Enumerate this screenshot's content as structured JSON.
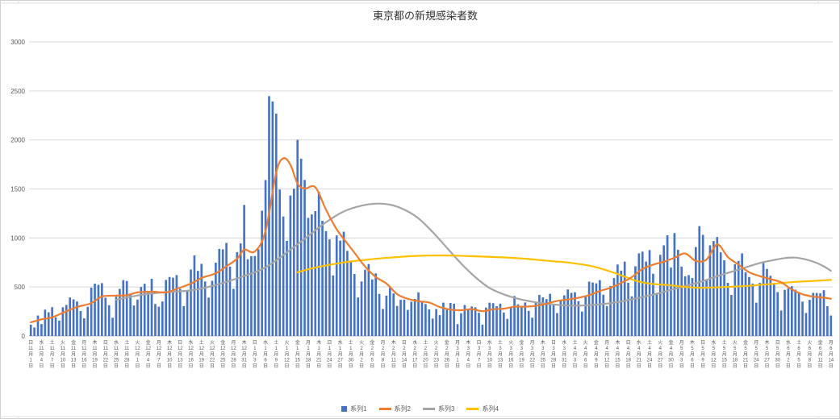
{
  "chart_data": {
    "type": "combo",
    "title": "東京都の新規感染者数",
    "ylim": [
      0,
      3000
    ],
    "yticks": [
      0,
      500,
      1000,
      1500,
      2000,
      2500,
      3000
    ],
    "x_total_days": 226,
    "x_tick_every_days": 3,
    "x_tick_labels": [
      [
        "日",
        11,
        1
      ],
      [
        "水",
        11,
        4
      ],
      [
        "土",
        11,
        7
      ],
      [
        "火",
        11,
        10
      ],
      [
        "金",
        11,
        13
      ],
      [
        "月",
        11,
        16
      ],
      [
        "木",
        11,
        19
      ],
      [
        "日",
        11,
        22
      ],
      [
        "水",
        11,
        25
      ],
      [
        "土",
        11,
        28
      ],
      [
        "火",
        12,
        1
      ],
      [
        "金",
        12,
        4
      ],
      [
        "月",
        12,
        7
      ],
      [
        "木",
        12,
        10
      ],
      [
        "日",
        12,
        13
      ],
      [
        "水",
        12,
        16
      ],
      [
        "土",
        12,
        19
      ],
      [
        "火",
        12,
        22
      ],
      [
        "金",
        12,
        25
      ],
      [
        "月",
        12,
        28
      ],
      [
        "木",
        12,
        31
      ],
      [
        "日",
        1,
        3
      ],
      [
        "水",
        1,
        6
      ],
      [
        "土",
        1,
        9
      ],
      [
        "火",
        1,
        12
      ],
      [
        "金",
        1,
        15
      ],
      [
        "月",
        1,
        18
      ],
      [
        "木",
        1,
        21
      ],
      [
        "日",
        1,
        24
      ],
      [
        "水",
        1,
        27
      ],
      [
        "土",
        1,
        30
      ],
      [
        "火",
        2,
        2
      ],
      [
        "金",
        2,
        5
      ],
      [
        "月",
        2,
        8
      ],
      [
        "木",
        2,
        11
      ],
      [
        "日",
        2,
        14
      ],
      [
        "水",
        2,
        17
      ],
      [
        "土",
        2,
        20
      ],
      [
        "火",
        2,
        23
      ],
      [
        "金",
        2,
        26
      ],
      [
        "月",
        3,
        1
      ],
      [
        "木",
        3,
        4
      ],
      [
        "日",
        3,
        7
      ],
      [
        "水",
        3,
        10
      ],
      [
        "土",
        3,
        13
      ],
      [
        "火",
        3,
        16
      ],
      [
        "金",
        3,
        19
      ],
      [
        "月",
        3,
        22
      ],
      [
        "木",
        3,
        25
      ],
      [
        "日",
        3,
        28
      ],
      [
        "水",
        3,
        31
      ],
      [
        "土",
        4,
        3
      ],
      [
        "火",
        4,
        6
      ],
      [
        "金",
        4,
        9
      ],
      [
        "月",
        4,
        12
      ],
      [
        "木",
        4,
        15
      ],
      [
        "日",
        4,
        18
      ],
      [
        "水",
        4,
        21
      ],
      [
        "土",
        4,
        24
      ],
      [
        "火",
        4,
        27
      ],
      [
        "金",
        4,
        30
      ],
      [
        "月",
        5,
        3
      ],
      [
        "木",
        5,
        6
      ],
      [
        "日",
        5,
        9
      ],
      [
        "水",
        5,
        12
      ],
      [
        "土",
        5,
        15
      ],
      [
        "火",
        5,
        18
      ],
      [
        "金",
        5,
        21
      ],
      [
        "月",
        5,
        24
      ],
      [
        "木",
        5,
        27
      ],
      [
        "日",
        5,
        30
      ],
      [
        "水",
        6,
        2
      ],
      [
        "土",
        6,
        5
      ],
      [
        "火",
        6,
        8
      ],
      [
        "金",
        6,
        11
      ],
      [
        "月",
        6,
        14
      ]
    ],
    "series1_bars": {
      "name": "系列1",
      "color": "#4472C4",
      "values": [
        116,
        87,
        209,
        122,
        269,
        242,
        294,
        189,
        157,
        293,
        317,
        393,
        374,
        352,
        255,
        180,
        298,
        493,
        534,
        522,
        539,
        391,
        314,
        186,
        401,
        481,
        570,
        561,
        418,
        311,
        372,
        500,
        533,
        449,
        584,
        327,
        299,
        352,
        572,
        602,
        595,
        621,
        480,
        305,
        460,
        678,
        822,
        664,
        736,
        556,
        392,
        563,
        748,
        888,
        884,
        949,
        708,
        481,
        856,
        944,
        1337,
        783,
        814,
        816,
        884,
        1278,
        1591,
        2447,
        2392,
        2268,
        1494,
        1219,
        970,
        1433,
        1502,
        2001,
        1809,
        1592,
        1204,
        1240,
        1274,
        1471,
        1175,
        1070,
        986,
        618,
        1026,
        973,
        1064,
        868,
        769,
        633,
        393,
        556,
        676,
        734,
        577,
        639,
        429,
        276,
        412,
        491,
        434,
        307,
        369,
        371,
        266,
        350,
        378,
        445,
        353,
        327,
        272,
        178,
        275,
        213,
        340,
        270,
        337,
        329,
        121,
        232,
        316,
        279,
        301,
        293,
        237,
        116,
        290,
        340,
        335,
        304,
        330,
        239,
        175,
        300,
        409,
        323,
        303,
        342,
        256,
        187,
        337,
        420,
        394,
        376,
        430,
        313,
        234,
        364,
        414,
        475,
        440,
        446,
        355,
        249,
        399,
        555,
        545,
        537,
        570,
        421,
        306,
        510,
        591,
        729,
        667,
        759,
        543,
        405,
        711,
        843,
        861,
        759,
        876,
        635,
        425,
        828,
        925,
        1027,
        698,
        1050,
        879,
        708,
        609,
        621,
        591,
        907,
        1121,
        1032,
        573,
        925,
        969,
        1010,
        854,
        772,
        542,
        419,
        732,
        766,
        843,
        649,
        602,
        535,
        340,
        542,
        743,
        684,
        614,
        539,
        448,
        260,
        471,
        487,
        508,
        472,
        436,
        351,
        235,
        369,
        440,
        439,
        435,
        467,
        304,
        209
      ]
    },
    "series2_line": {
      "name": "系列2",
      "color": "#ED7D31",
      "points": [
        [
          0,
          140
        ],
        [
          3,
          170
        ],
        [
          6,
          191
        ],
        [
          10,
          252
        ],
        [
          13,
          296
        ],
        [
          17,
          335
        ],
        [
          20,
          403
        ],
        [
          24,
          412
        ],
        [
          27,
          415
        ],
        [
          30,
          445
        ],
        [
          34,
          452
        ],
        [
          38,
          445
        ],
        [
          41,
          481
        ],
        [
          45,
          534
        ],
        [
          48,
          592
        ],
        [
          52,
          640
        ],
        [
          55,
          711
        ],
        [
          58,
          788
        ],
        [
          60,
          880
        ],
        [
          63,
          862
        ],
        [
          66,
          1072
        ],
        [
          69,
          1668
        ],
        [
          71,
          1813
        ],
        [
          73,
          1746
        ],
        [
          75,
          1555
        ],
        [
          77,
          1504
        ],
        [
          80,
          1517
        ],
        [
          83,
          1289
        ],
        [
          86,
          1089
        ],
        [
          89,
          944
        ],
        [
          91,
          850
        ],
        [
          94,
          708
        ],
        [
          97,
          601
        ],
        [
          100,
          535
        ],
        [
          103,
          427
        ],
        [
          106,
          379
        ],
        [
          109,
          355
        ],
        [
          112,
          342
        ],
        [
          115,
          295
        ],
        [
          118,
          269
        ],
        [
          121,
          263
        ],
        [
          124,
          274
        ],
        [
          127,
          253
        ],
        [
          130,
          273
        ],
        [
          133,
          279
        ],
        [
          136,
          299
        ],
        [
          139,
          299
        ],
        [
          142,
          308
        ],
        [
          145,
          330
        ],
        [
          148,
          358
        ],
        [
          151,
          372
        ],
        [
          154,
          390
        ],
        [
          157,
          417
        ],
        [
          160,
          459
        ],
        [
          163,
          492
        ],
        [
          166,
          542
        ],
        [
          169,
          601
        ],
        [
          172,
          684
        ],
        [
          175,
          727
        ],
        [
          178,
          758
        ],
        [
          181,
          798
        ],
        [
          184,
          842
        ],
        [
          187,
          766
        ],
        [
          190,
          779
        ],
        [
          193,
          934
        ],
        [
          196,
          806
        ],
        [
          199,
          728
        ],
        [
          202,
          650
        ],
        [
          205,
          611
        ],
        [
          208,
          580
        ],
        [
          211,
          547
        ],
        [
          214,
          475
        ],
        [
          217,
          426
        ],
        [
          220,
          402
        ],
        [
          223,
          391
        ],
        [
          225,
          380
        ]
      ]
    },
    "series3_line": {
      "name": "系列3",
      "color": "#A5A5A5",
      "points": [
        [
          24,
          370
        ],
        [
          31,
          420
        ],
        [
          38,
          448
        ],
        [
          45,
          465
        ],
        [
          52,
          520
        ],
        [
          59,
          600
        ],
        [
          66,
          700
        ],
        [
          73,
          880
        ],
        [
          78,
          1020
        ],
        [
          83,
          1160
        ],
        [
          88,
          1270
        ],
        [
          93,
          1330
        ],
        [
          97,
          1350
        ],
        [
          101,
          1340
        ],
        [
          105,
          1290
        ],
        [
          109,
          1200
        ],
        [
          113,
          1060
        ],
        [
          117,
          900
        ],
        [
          121,
          740
        ],
        [
          125,
          600
        ],
        [
          129,
          490
        ],
        [
          133,
          425
        ],
        [
          137,
          380
        ],
        [
          141,
          350
        ],
        [
          145,
          330
        ],
        [
          149,
          315
        ],
        [
          153,
          310
        ],
        [
          157,
          315
        ],
        [
          161,
          327
        ],
        [
          165,
          345
        ],
        [
          169,
          375
        ],
        [
          173,
          405
        ],
        [
          177,
          440
        ],
        [
          181,
          480
        ],
        [
          185,
          520
        ],
        [
          189,
          560
        ],
        [
          193,
          610
        ],
        [
          197,
          655
        ],
        [
          201,
          700
        ],
        [
          205,
          745
        ],
        [
          209,
          775
        ],
        [
          212,
          795
        ],
        [
          215,
          800
        ],
        [
          218,
          780
        ],
        [
          221,
          745
        ],
        [
          223,
          710
        ],
        [
          225,
          665
        ]
      ]
    },
    "series4_line": {
      "name": "系列4",
      "color": "#FFC000",
      "points": [
        [
          75,
          650
        ],
        [
          79,
          690
        ],
        [
          83,
          720
        ],
        [
          87,
          745
        ],
        [
          91,
          765
        ],
        [
          95,
          780
        ],
        [
          99,
          795
        ],
        [
          103,
          805
        ],
        [
          107,
          815
        ],
        [
          111,
          820
        ],
        [
          115,
          822
        ],
        [
          119,
          820
        ],
        [
          123,
          815
        ],
        [
          127,
          810
        ],
        [
          131,
          805
        ],
        [
          135,
          798
        ],
        [
          139,
          788
        ],
        [
          143,
          775
        ],
        [
          147,
          762
        ],
        [
          151,
          750
        ],
        [
          155,
          730
        ],
        [
          158,
          710
        ],
        [
          161,
          680
        ],
        [
          164,
          645
        ],
        [
          167,
          605
        ],
        [
          170,
          565
        ],
        [
          173,
          540
        ],
        [
          176,
          528
        ],
        [
          179,
          520
        ],
        [
          182,
          508
        ],
        [
          185,
          498
        ],
        [
          188,
          492
        ],
        [
          191,
          494
        ],
        [
          194,
          498
        ],
        [
          197,
          503
        ],
        [
          200,
          508
        ],
        [
          203,
          515
        ],
        [
          206,
          524
        ],
        [
          209,
          533
        ],
        [
          212,
          543
        ],
        [
          215,
          552
        ],
        [
          218,
          558
        ],
        [
          221,
          564
        ],
        [
          225,
          572
        ]
      ]
    },
    "legend": [
      {
        "label": "系列1",
        "color": "#4472C4",
        "marker": "bar"
      },
      {
        "label": "系列2",
        "color": "#ED7D31",
        "marker": "line"
      },
      {
        "label": "系列3",
        "color": "#A5A5A5",
        "marker": "line"
      },
      {
        "label": "系列4",
        "color": "#FFC000",
        "marker": "line"
      }
    ]
  }
}
